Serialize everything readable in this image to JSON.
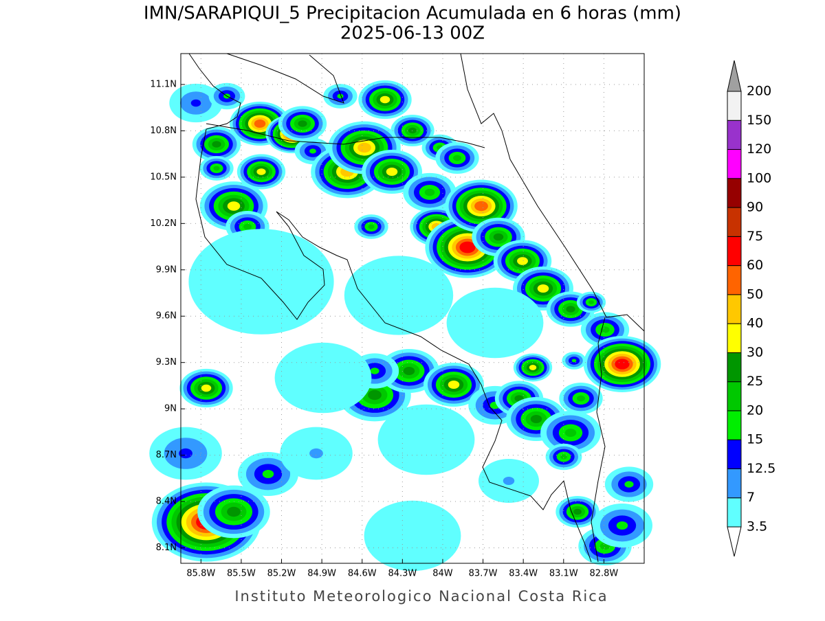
{
  "title": "IMN/SARAPIQUI_5 Precipitacion Acumulada en 6 horas (mm)",
  "subtitle": "2025-06-13 00Z",
  "footer": "Instituto Meteorologico Nacional Costa Rica",
  "map": {
    "xlim": [
      -85.95,
      -82.5
    ],
    "ylim": [
      8.0,
      11.3
    ],
    "grid": true,
    "xticks": [
      {
        "value": -85.8,
        "label": "85.8W"
      },
      {
        "value": -85.5,
        "label": "85.5W"
      },
      {
        "value": -85.2,
        "label": "85.2W"
      },
      {
        "value": -84.9,
        "label": "84.9W"
      },
      {
        "value": -84.6,
        "label": "84.6W"
      },
      {
        "value": -84.3,
        "label": "84.3W"
      },
      {
        "value": -84.0,
        "label": "84W"
      },
      {
        "value": -83.7,
        "label": "83.7W"
      },
      {
        "value": -83.4,
        "label": "83.4W"
      },
      {
        "value": -83.1,
        "label": "83.1W"
      },
      {
        "value": -82.8,
        "label": "82.8W"
      }
    ],
    "yticks": [
      {
        "value": 8.1,
        "label": "8.1N"
      },
      {
        "value": 8.4,
        "label": "8.4N"
      },
      {
        "value": 8.7,
        "label": "8.7N"
      },
      {
        "value": 9.0,
        "label": "9N"
      },
      {
        "value": 9.3,
        "label": "9.3N"
      },
      {
        "value": 9.6,
        "label": "9.6N"
      },
      {
        "value": 9.9,
        "label": "9.9N"
      },
      {
        "value": 10.2,
        "label": "10.2N"
      },
      {
        "value": 10.5,
        "label": "10.5N"
      },
      {
        "value": 10.8,
        "label": "10.8N"
      },
      {
        "value": 11.1,
        "label": "11.1N"
      }
    ]
  },
  "colorbar": {
    "levels": [
      3.5,
      7,
      12.5,
      15,
      20,
      25,
      30,
      40,
      50,
      60,
      75,
      90,
      100,
      120,
      150,
      200
    ],
    "colors": [
      "#60ffff",
      "#3399ff",
      "#0000ff",
      "#00ee00",
      "#00c800",
      "#009600",
      "#ffff00",
      "#ffc800",
      "#ff6400",
      "#ff0000",
      "#c83200",
      "#960000",
      "#ff00ff",
      "#9932cc",
      "#f2f2f2"
    ],
    "over_color": "#a0a0a0",
    "under_color": "#ffffff"
  }
}
